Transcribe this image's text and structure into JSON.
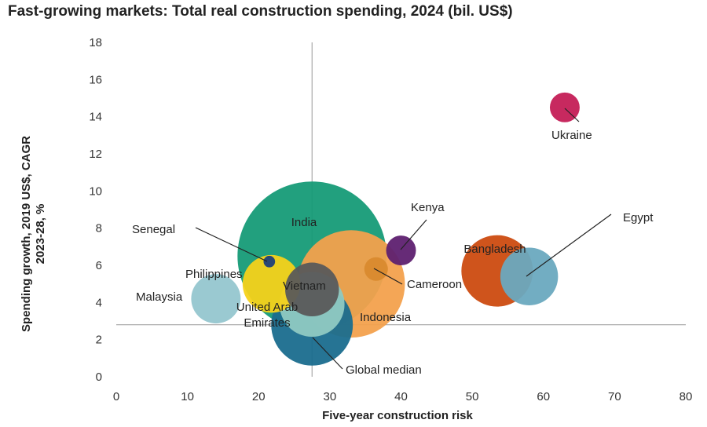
{
  "chart_data": {
    "type": "bubble",
    "title": "Fast-growing markets: Total real construction spending, 2024 (bil. US$)",
    "xlabel": "Five-year construction  risk",
    "ylabel_line1": "Spending growth, 2019 US$, CAGR",
    "ylabel_line2": "2023-28, %",
    "xlim": [
      0,
      80
    ],
    "ylim": [
      0,
      18
    ],
    "xticks": [
      0,
      10,
      20,
      30,
      40,
      50,
      60,
      70,
      80
    ],
    "yticks": [
      0,
      2,
      4,
      6,
      8,
      10,
      12,
      14,
      16,
      18
    ],
    "reference_lines": {
      "x": 27.5,
      "y": 2.8
    },
    "series": [
      {
        "name": "India",
        "x": 27.5,
        "y": 6.5,
        "size": 10,
        "color": "#169b77"
      },
      {
        "name": "Indonesia",
        "x": 33.0,
        "y": 5.0,
        "size": 5.2,
        "color": "#f3a14d"
      },
      {
        "name": "Global median",
        "x": 27.5,
        "y": 2.8,
        "size": 3.0,
        "color": "#1a6d8e"
      },
      {
        "name": "United Arab Emirates",
        "x": 27.5,
        "y": 3.9,
        "size": 1.9,
        "color": "#8fc9c2"
      },
      {
        "name": "Bangladesh",
        "x": 53.5,
        "y": 5.7,
        "size": 2.3,
        "color": "#cc4b10"
      },
      {
        "name": "Egypt",
        "x": 58.0,
        "y": 5.4,
        "size": 1.5,
        "color": "#6aa9bf"
      },
      {
        "name": "Malaysia",
        "x": 14.0,
        "y": 4.2,
        "size": 1.1,
        "color": "#95c6cf"
      },
      {
        "name": "Philippines",
        "x": 21.8,
        "y": 5.0,
        "size": 1.5,
        "color": "#f5d21a"
      },
      {
        "name": "Vietnam",
        "x": 27.5,
        "y": 4.7,
        "size": 1.3,
        "color": "#5a5a5a"
      },
      {
        "name": "Kenya",
        "x": 40.0,
        "y": 6.8,
        "size": 0.4,
        "color": "#5e2070"
      },
      {
        "name": "Cameroon",
        "x": 36.5,
        "y": 5.8,
        "size": 0.25,
        "color": "#d98a2e"
      },
      {
        "name": "Senegal",
        "x": 21.5,
        "y": 6.2,
        "size": 0.06,
        "color": "#1f3f7a"
      },
      {
        "name": "Ukraine",
        "x": 63.0,
        "y": 14.5,
        "size": 0.4,
        "color": "#c41e56"
      }
    ]
  }
}
